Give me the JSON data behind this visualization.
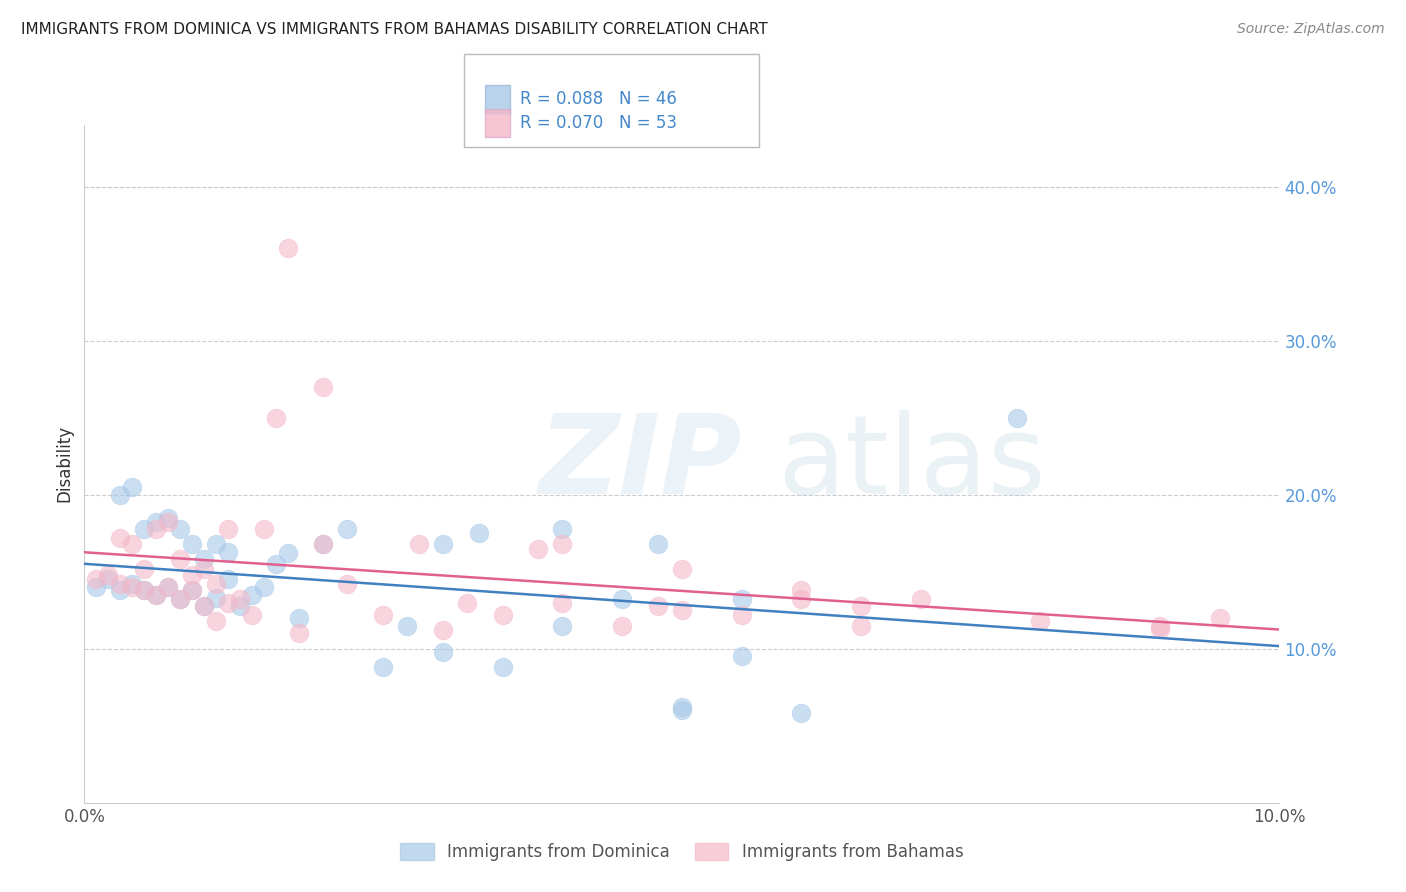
{
  "title": "IMMIGRANTS FROM DOMINICA VS IMMIGRANTS FROM BAHAMAS DISABILITY CORRELATION CHART",
  "source": "Source: ZipAtlas.com",
  "ylabel": "Disability",
  "ytick_values": [
    0.1,
    0.2,
    0.3,
    0.4
  ],
  "ytick_labels": [
    "10.0%",
    "20.0%",
    "30.0%",
    "40.0%"
  ],
  "xlim": [
    0.0,
    0.1
  ],
  "ylim": [
    0.0,
    0.44
  ],
  "blue_color": "#a8c8e8",
  "pink_color": "#f4b8c8",
  "blue_line_color": "#4080c0",
  "pink_line_color": "#e06090",
  "blue_label": "Immigrants from Dominica",
  "pink_label": "Immigrants from Bahamas",
  "legend_blue_r": "R = 0.088",
  "legend_blue_n": "N = 46",
  "legend_pink_r": "R = 0.070",
  "legend_pink_n": "N = 53",
  "blue_x": [
    0.001,
    0.002,
    0.003,
    0.004,
    0.005,
    0.006,
    0.007,
    0.008,
    0.009,
    0.01,
    0.011,
    0.012,
    0.013,
    0.014,
    0.015,
    0.003,
    0.004,
    0.005,
    0.006,
    0.007,
    0.008,
    0.009,
    0.01,
    0.011,
    0.012,
    0.016,
    0.017,
    0.018,
    0.02,
    0.022,
    0.025,
    0.027,
    0.03,
    0.033,
    0.035,
    0.04,
    0.048,
    0.05,
    0.055,
    0.06,
    0.04,
    0.045,
    0.078,
    0.03,
    0.055,
    0.05
  ],
  "blue_y": [
    0.14,
    0.145,
    0.138,
    0.142,
    0.138,
    0.135,
    0.14,
    0.132,
    0.138,
    0.128,
    0.133,
    0.145,
    0.128,
    0.135,
    0.14,
    0.2,
    0.205,
    0.178,
    0.182,
    0.185,
    0.178,
    0.168,
    0.158,
    0.168,
    0.163,
    0.155,
    0.162,
    0.12,
    0.168,
    0.178,
    0.088,
    0.115,
    0.168,
    0.175,
    0.088,
    0.115,
    0.168,
    0.062,
    0.132,
    0.058,
    0.178,
    0.132,
    0.25,
    0.098,
    0.095,
    0.06
  ],
  "pink_x": [
    0.001,
    0.002,
    0.003,
    0.004,
    0.005,
    0.006,
    0.007,
    0.008,
    0.009,
    0.01,
    0.011,
    0.012,
    0.013,
    0.014,
    0.015,
    0.003,
    0.004,
    0.005,
    0.006,
    0.007,
    0.008,
    0.009,
    0.01,
    0.011,
    0.012,
    0.016,
    0.018,
    0.02,
    0.022,
    0.025,
    0.028,
    0.03,
    0.032,
    0.035,
    0.038,
    0.04,
    0.045,
    0.048,
    0.05,
    0.055,
    0.06,
    0.065,
    0.07,
    0.08,
    0.09,
    0.095,
    0.017,
    0.02,
    0.04,
    0.05,
    0.06,
    0.065,
    0.09
  ],
  "pink_y": [
    0.145,
    0.148,
    0.142,
    0.14,
    0.138,
    0.135,
    0.14,
    0.132,
    0.138,
    0.128,
    0.118,
    0.13,
    0.132,
    0.122,
    0.178,
    0.172,
    0.168,
    0.152,
    0.178,
    0.182,
    0.158,
    0.148,
    0.152,
    0.142,
    0.178,
    0.25,
    0.11,
    0.168,
    0.142,
    0.122,
    0.168,
    0.112,
    0.13,
    0.122,
    0.165,
    0.168,
    0.115,
    0.128,
    0.152,
    0.122,
    0.138,
    0.128,
    0.132,
    0.118,
    0.115,
    0.12,
    0.36,
    0.27,
    0.13,
    0.125,
    0.132,
    0.115,
    0.113
  ]
}
